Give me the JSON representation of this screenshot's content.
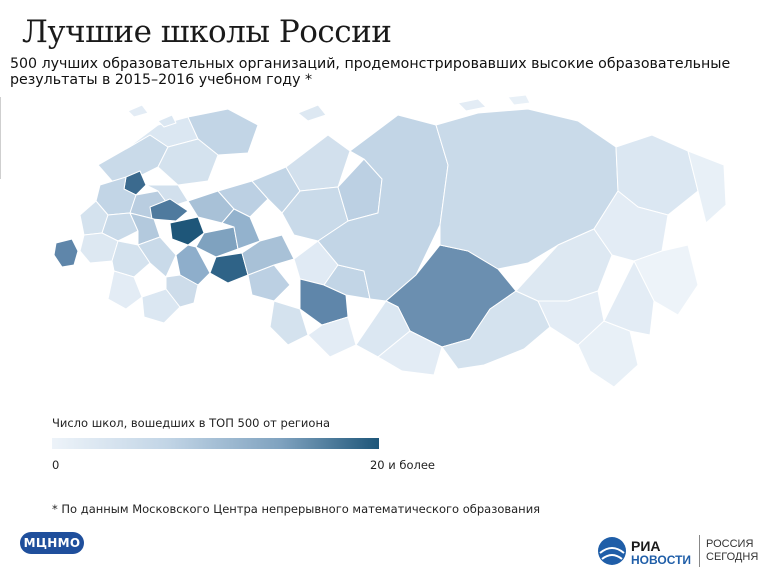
{
  "header": {
    "title": "Лучшие школы России",
    "subtitle": "500 лучших образовательных организаций, продемонстрировавших высокие образовательные результаты в 2015–2016 учебном году *"
  },
  "map": {
    "region": "Россия",
    "color_scale": {
      "low": "#edf3f9",
      "high": "#1e5679"
    }
  },
  "legend": {
    "title": "Число школ, вошедших в ТОП 500 от региона",
    "min_label": "0",
    "max_label": "20 и более"
  },
  "footnote": "* По данным Московского Центра непрерывного математического образования",
  "logos": {
    "left": "МЦНМО",
    "right_line1": "РИА",
    "right_line2": "НОВОСТИ",
    "right_line3": "РОССИЯ",
    "right_line4": "СЕГОДНЯ"
  }
}
